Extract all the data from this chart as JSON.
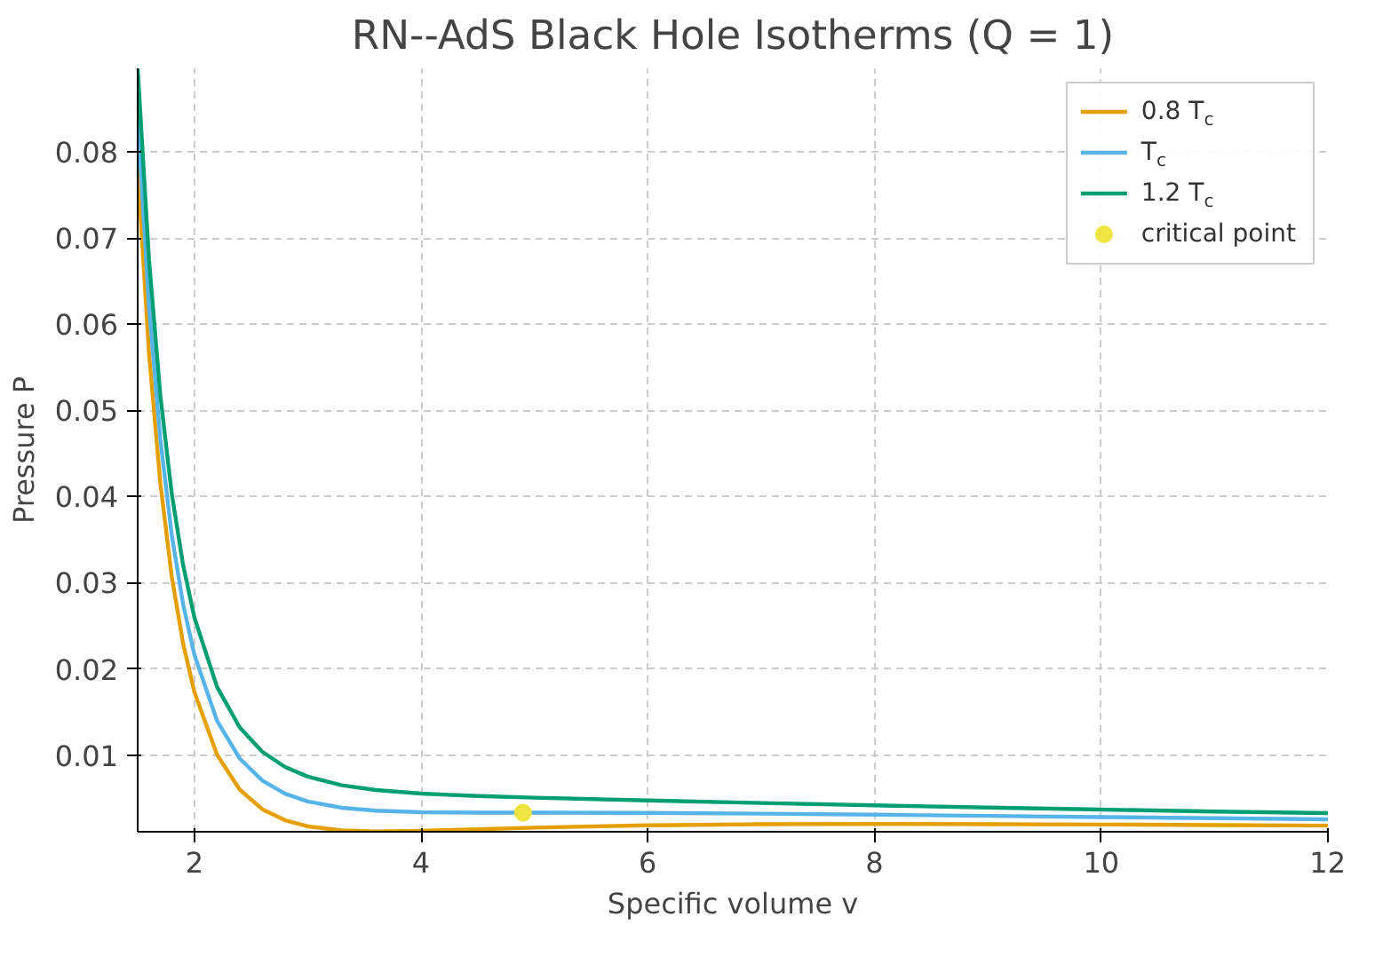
{
  "chart_data": {
    "type": "line",
    "title": "RN--AdS Black Hole Isotherms (Q = 1)",
    "xlabel": "Specific volume v",
    "ylabel": "Pressure P",
    "x": [
      1.5,
      1.6,
      1.7,
      1.8,
      1.9,
      2.0,
      2.2,
      2.4,
      2.6,
      2.8,
      3.0,
      3.3,
      3.6,
      4.0,
      4.5,
      5,
      6,
      7,
      8,
      9,
      10,
      11,
      12
    ],
    "series": [
      {
        "name": "0.8 T$_{c}$",
        "color": "#e69f00",
        "values": [
          0.07811,
          0.05662,
          0.04153,
          0.03077,
          0.023,
          0.01732,
          0.01004,
          0.00599,
          0.00371,
          0.00243,
          0.00172,
          0.00125,
          0.00113,
          0.0012,
          0.00139,
          0.00158,
          0.00184,
          0.00197,
          0.002,
          0.00198,
          0.00194,
          0.00188,
          0.00181
        ]
      },
      {
        "name": "T$_{c}$",
        "color": "#56b4e9",
        "values": [
          0.08389,
          0.06204,
          0.04663,
          0.03558,
          0.02756,
          0.02165,
          0.01398,
          0.0096,
          0.00704,
          0.00552,
          0.00461,
          0.00388,
          0.00354,
          0.00337,
          0.00332,
          0.00331,
          0.00329,
          0.0032,
          0.00308,
          0.00294,
          0.0028,
          0.00267,
          0.00254
        ]
      },
      {
        "name": "1.2 T$_{c}$",
        "color": "#009e73",
        "values": [
          0.08966,
          0.06745,
          0.05172,
          0.04039,
          0.03211,
          0.02598,
          0.01791,
          0.01321,
          0.01037,
          0.00862,
          0.0075,
          0.0065,
          0.00594,
          0.00553,
          0.00524,
          0.00505,
          0.00473,
          0.00444,
          0.00416,
          0.00391,
          0.00367,
          0.00345,
          0.00326
        ]
      },
      {
        "name": "critical point",
        "type": "scatter",
        "color": "#f0e442",
        "marker": "circle",
        "x": [
          4.899
        ],
        "values": [
          0.003316
        ]
      }
    ],
    "xlim": [
      1.5,
      12
    ],
    "ylim": [
      0.0011,
      0.0897
    ],
    "xticks": [
      2,
      4,
      6,
      8,
      10,
      12
    ],
    "yticks": [
      0.01,
      0.02,
      0.03,
      0.04,
      0.05,
      0.06,
      0.07,
      0.08
    ],
    "grid": true,
    "legend": "top right",
    "marker": "none",
    "line_style": "solid"
  }
}
